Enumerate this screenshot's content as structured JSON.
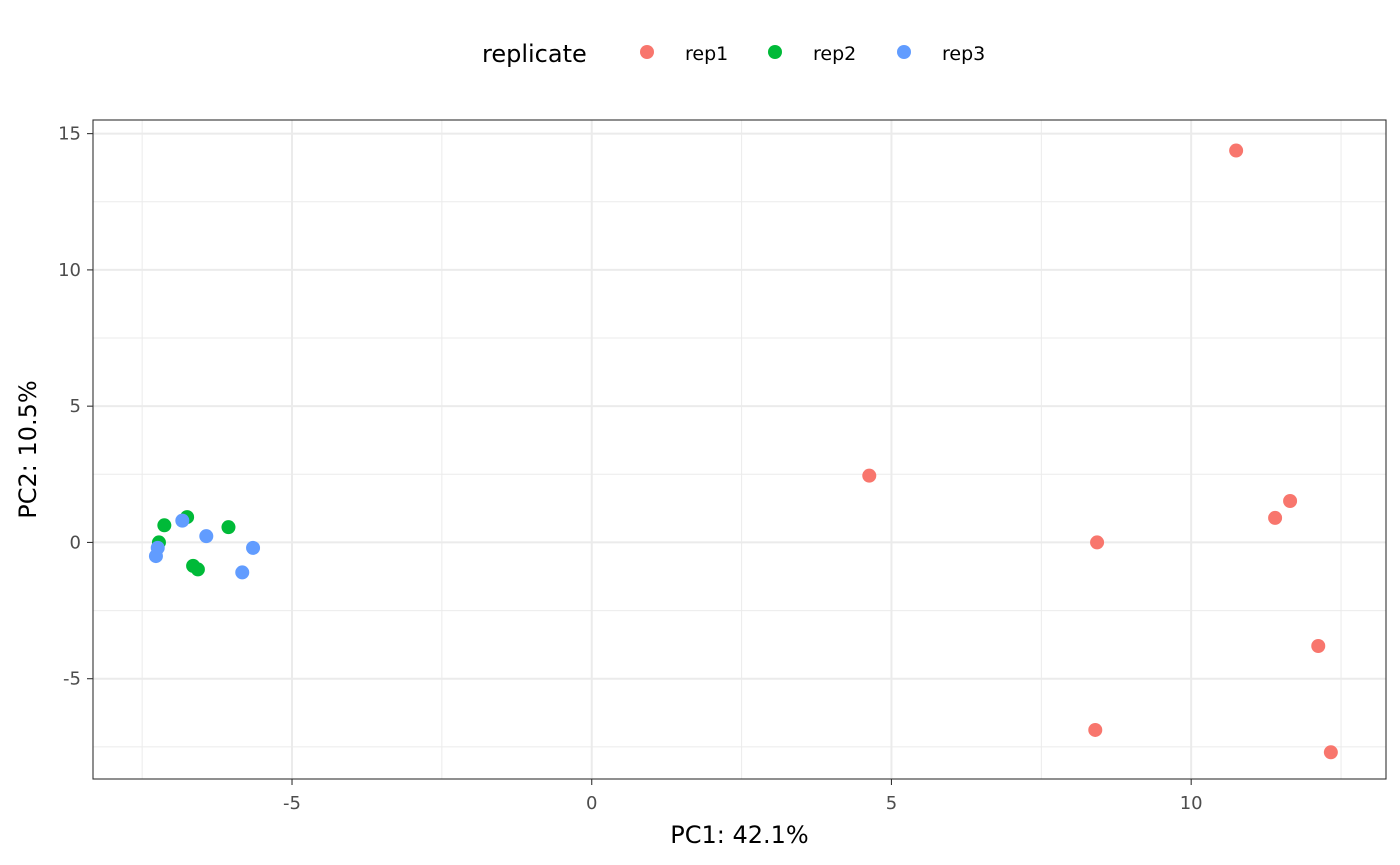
{
  "chart_data": {
    "type": "scatter",
    "xlabel": "PC1: 42.1%",
    "ylabel": "PC2: 10.5%",
    "xlim": [
      -8.32,
      13.25
    ],
    "ylim": [
      -8.68,
      15.5
    ],
    "x_ticks": [
      -5,
      0,
      5,
      10
    ],
    "x_tick_labels": [
      "-5",
      "0",
      "5",
      "10"
    ],
    "y_ticks": [
      -5,
      0,
      5,
      10,
      15
    ],
    "y_tick_labels": [
      "-5",
      "0",
      "5",
      "10",
      "15"
    ],
    "x_minor_ticks": [
      -7.5,
      -2.5,
      2.5,
      7.5,
      12.5
    ],
    "y_minor_ticks": [
      -7.5,
      -2.5,
      2.5,
      7.5,
      12.5
    ],
    "grid": true,
    "theme": "bw",
    "legend": {
      "title": "replicate",
      "position": "top"
    },
    "series": [
      {
        "name": "rep1",
        "color": "#F8766D",
        "points": [
          {
            "x": 10.75,
            "y": 14.38
          },
          {
            "x": 4.63,
            "y": 2.45
          },
          {
            "x": 11.65,
            "y": 1.52
          },
          {
            "x": 11.4,
            "y": 0.9
          },
          {
            "x": 8.43,
            "y": 0.0
          },
          {
            "x": 12.12,
            "y": -3.8
          },
          {
            "x": 8.4,
            "y": -6.88
          },
          {
            "x": 12.33,
            "y": -7.7
          }
        ]
      },
      {
        "name": "rep2",
        "color": "#00BA38",
        "points": [
          {
            "x": -6.75,
            "y": 0.93
          },
          {
            "x": -7.13,
            "y": 0.63
          },
          {
            "x": -6.06,
            "y": 0.56
          },
          {
            "x": -7.22,
            "y": 0.0
          },
          {
            "x": -6.65,
            "y": -0.86
          },
          {
            "x": -6.57,
            "y": -0.99
          }
        ]
      },
      {
        "name": "rep3",
        "color": "#619CFF",
        "points": [
          {
            "x": -6.83,
            "y": 0.8
          },
          {
            "x": -6.43,
            "y": 0.23
          },
          {
            "x": -5.65,
            "y": -0.2
          },
          {
            "x": -7.24,
            "y": -0.2
          },
          {
            "x": -7.27,
            "y": -0.5
          },
          {
            "x": -5.83,
            "y": -1.1
          }
        ]
      }
    ]
  }
}
